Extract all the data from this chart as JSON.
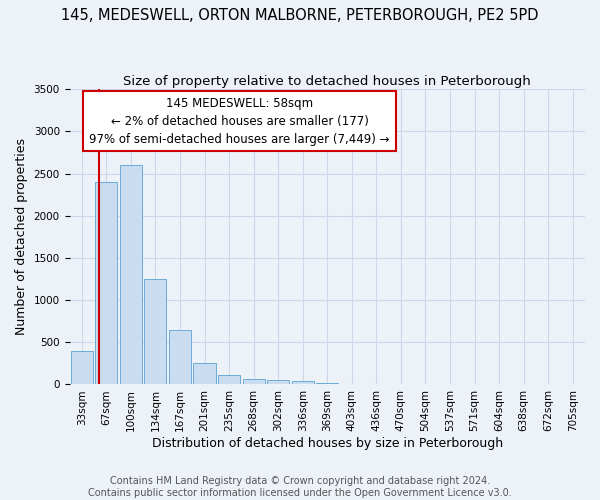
{
  "title": "145, MEDESWELL, ORTON MALBORNE, PETERBOROUGH, PE2 5PD",
  "subtitle": "Size of property relative to detached houses in Peterborough",
  "xlabel": "Distribution of detached houses by size in Peterborough",
  "ylabel": "Number of detached properties",
  "footer": "Contains HM Land Registry data © Crown copyright and database right 2024.\nContains public sector information licensed under the Open Government Licence v3.0.",
  "bar_labels": [
    "33sqm",
    "67sqm",
    "100sqm",
    "134sqm",
    "167sqm",
    "201sqm",
    "235sqm",
    "268sqm",
    "302sqm",
    "336sqm",
    "369sqm",
    "403sqm",
    "436sqm",
    "470sqm",
    "504sqm",
    "537sqm",
    "571sqm",
    "604sqm",
    "638sqm",
    "672sqm",
    "705sqm"
  ],
  "bar_values": [
    400,
    2400,
    2600,
    1250,
    650,
    255,
    110,
    70,
    50,
    40,
    20,
    5,
    2,
    0,
    0,
    0,
    0,
    0,
    0,
    0,
    0
  ],
  "bar_color": "#c9dcf0",
  "bar_edge_color": "#6aacd6",
  "grid_color": "#ccd8ea",
  "background_color": "#edf2f9",
  "annotation_line1": "145 MEDESWELL: 58sqm",
  "annotation_line2": "← 2% of detached houses are smaller (177)",
  "annotation_line3": "97% of semi-detached houses are larger (7,449) →",
  "annotation_box_color": "#ffffff",
  "annotation_border_color": "#cc0000",
  "property_line_color": "#cc0000",
  "property_line_x": 0.72,
  "ylim": [
    0,
    3500
  ],
  "yticks": [
    0,
    500,
    1000,
    1500,
    2000,
    2500,
    3000,
    3500
  ],
  "title_fontsize": 10.5,
  "subtitle_fontsize": 9.5,
  "axis_label_fontsize": 9,
  "tick_fontsize": 7.5,
  "footer_fontsize": 7,
  "annotation_fontsize": 8.5
}
